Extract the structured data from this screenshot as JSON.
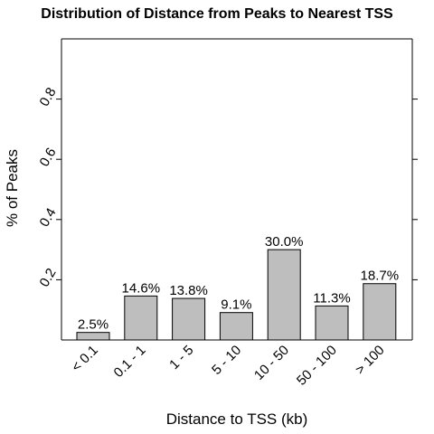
{
  "chart_data": {
    "type": "bar",
    "title": "Distribution of Distance from Peaks to Nearest TSS",
    "xlabel": "Distance to TSS (kb)",
    "ylabel": "% of Peaks",
    "categories": [
      "< 0.1",
      "0.1 - 1",
      "1 - 5",
      "5 - 10",
      "10 - 50",
      "50 - 100",
      "> 100"
    ],
    "values": [
      0.025,
      0.146,
      0.138,
      0.091,
      0.3,
      0.113,
      0.187
    ],
    "data_labels": [
      "2.5%",
      "14.6%",
      "13.8%",
      "9.1%",
      "30.0%",
      "11.3%",
      "18.7%"
    ],
    "yticks": [
      0.2,
      0.4,
      0.6,
      0.8
    ],
    "ytick_labels": [
      "0.2",
      "0.4",
      "0.6",
      "0.8"
    ],
    "ylim": [
      0,
      1.0
    ],
    "bar_color": "#bebebe",
    "grid": false
  }
}
